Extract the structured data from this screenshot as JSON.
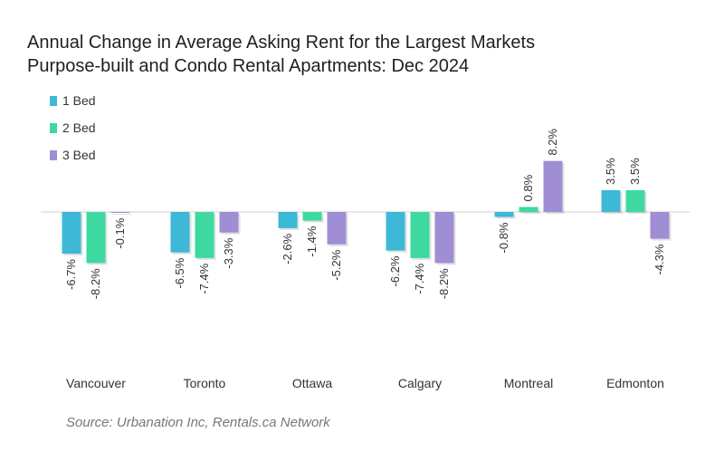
{
  "title_line1": "Annual Change in Average Asking Rent for the Largest Markets",
  "title_line2": "Purpose-built and Condo Rental Apartments: Dec 2024",
  "source": "Source: Urbanation Inc, Rentals.ca Network",
  "chart_data": {
    "type": "bar",
    "categories": [
      "Vancouver",
      "Toronto",
      "Ottawa",
      "Calgary",
      "Montreal",
      "Edmonton"
    ],
    "series": [
      {
        "name": "1 Bed",
        "color": "#3db8d6",
        "values": [
          -6.7,
          -6.5,
          -2.6,
          -6.2,
          -0.8,
          3.5
        ],
        "labels": [
          "-6.7%",
          "-6.5%",
          "-2.6%",
          "-6.2%",
          "-0.8%",
          "3.5%"
        ]
      },
      {
        "name": "2 Bed",
        "color": "#3dd9a0",
        "values": [
          -8.2,
          -7.4,
          -1.4,
          -7.4,
          0.8,
          3.5
        ],
        "labels": [
          "-8.2%",
          "-7.4%",
          "-1.4%",
          "-7.4%",
          "0.8%",
          "3.5%"
        ]
      },
      {
        "name": "3 Bed",
        "color": "#a08ed4",
        "values": [
          -0.1,
          -3.3,
          -5.2,
          -8.2,
          8.2,
          -4.3
        ],
        "labels": [
          "-0.1%",
          "-3.3%",
          "-5.2%",
          "-8.2%",
          "8.2%",
          "-4.3%"
        ]
      }
    ],
    "legend_position": "top-left",
    "grid": false
  }
}
